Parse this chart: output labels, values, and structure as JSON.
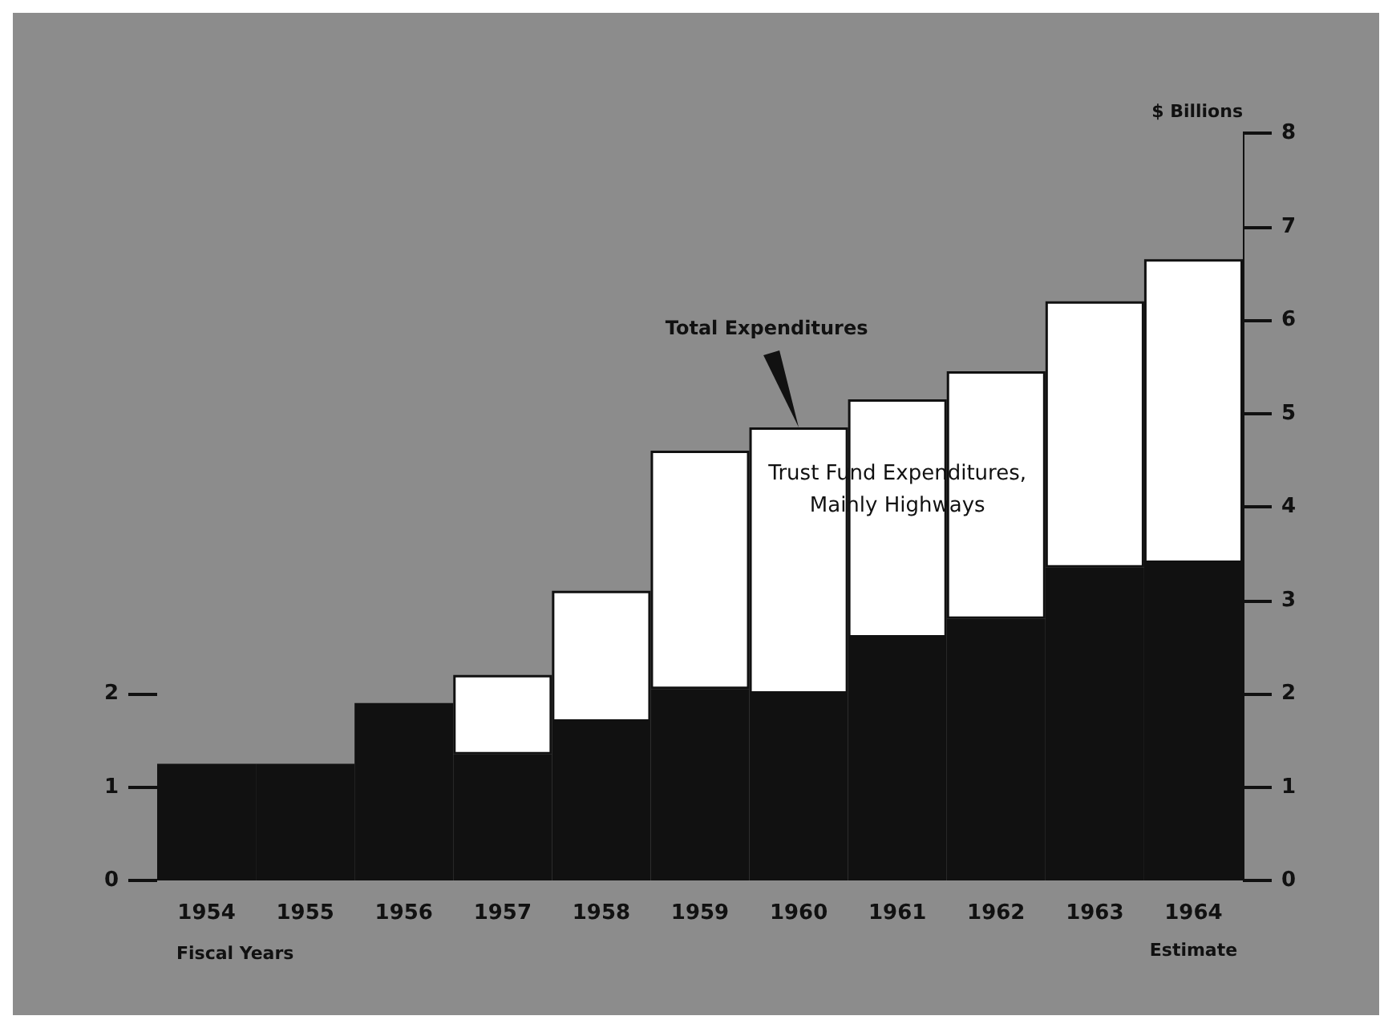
{
  "chart_data": {
    "type": "bar",
    "stacked": true,
    "categories": [
      "1954",
      "1955",
      "1956",
      "1957",
      "1958",
      "1959",
      "1960",
      "1961",
      "1962",
      "1963",
      "1964"
    ],
    "series": [
      {
        "color": "#111111",
        "values": [
          1.25,
          1.25,
          1.9,
          1.35,
          1.7,
          2.05,
          2.0,
          2.6,
          2.8,
          3.35,
          3.4
        ]
      },
      {
        "name": "Trust Fund Expenditures, Mainly Highways",
        "color": "#ffffff",
        "values": [
          null,
          null,
          null,
          0.85,
          1.4,
          2.55,
          2.85,
          2.55,
          2.65,
          2.85,
          3.25
        ]
      }
    ],
    "xlabel": "Fiscal Years",
    "y2label": "$ Billions",
    "ylim": [
      0,
      8
    ],
    "yticks": [
      0,
      1,
      2
    ],
    "y2lim": [
      0,
      8
    ],
    "y2ticks": [
      0,
      1,
      2,
      3,
      4,
      5,
      6,
      7,
      8
    ],
    "annotations": [
      {
        "text": "Total Expenditures",
        "x": "1960",
        "y": 4.85
      },
      "Estimate"
    ],
    "grid": false,
    "legend": false
  }
}
